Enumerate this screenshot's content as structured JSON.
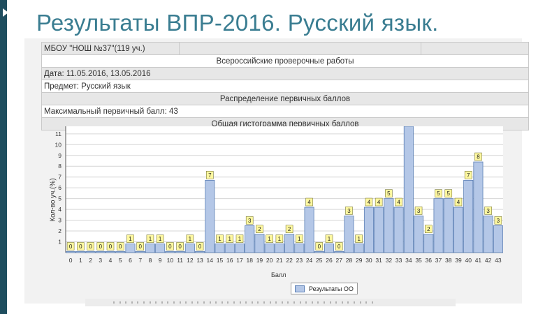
{
  "slide": {
    "title": "Результаты ВПР-2016. Русский язык."
  },
  "info": {
    "school": "МБОУ \"НОШ №37\"(119 уч.)",
    "project": "Всероссийские проверочные работы",
    "date": "Дата: 11.05.2016, 13.05.2016",
    "subject": "Предмет: Русский язык",
    "section": "Распределение первичных баллов",
    "max_score": "Максимальный первичный балл: 43",
    "chart_heading": "Общая гистограмма первичных баллов"
  },
  "colors": {
    "bar_fill": "#b4c7e7",
    "bar_stroke": "#5b7fb5",
    "label_fill": "#fff8a0",
    "title": "#3a7d91",
    "accent": "#1f4e5f"
  },
  "chart_data": {
    "type": "bar",
    "title": "Общая гистограмма первичных баллов",
    "xlabel": "Балл",
    "ylabel": "Кол-во уч.(%)",
    "ylim": [
      0,
      11.7
    ],
    "yticks": [
      1,
      2,
      3,
      4,
      5,
      6,
      7,
      8,
      9,
      10,
      11
    ],
    "grid": true,
    "legend": "bottom-center",
    "categories": [
      "0",
      "1",
      "2",
      "3",
      "4",
      "5",
      "6",
      "7",
      "8",
      "9",
      "10",
      "11",
      "12",
      "13",
      "14",
      "15",
      "16",
      "17",
      "18",
      "19",
      "20",
      "21",
      "22",
      "23",
      "24",
      "25",
      "26",
      "27",
      "28",
      "29",
      "30",
      "31",
      "32",
      "33",
      "34",
      "35",
      "36",
      "37",
      "38",
      "39",
      "40",
      "41",
      "42",
      "43"
    ],
    "series": [
      {
        "name": "Результаты ОО",
        "values": [
          0.1,
          0.1,
          0.1,
          0.1,
          0.1,
          0.1,
          0.8,
          0.1,
          0.8,
          0.8,
          0.1,
          0.1,
          0.8,
          0.1,
          6.7,
          0.8,
          0.8,
          0.8,
          2.5,
          1.7,
          0.8,
          0.8,
          1.7,
          0.8,
          4.2,
          0.1,
          0.8,
          0.1,
          3.4,
          0.8,
          4.2,
          4.2,
          5.0,
          4.2,
          11.7,
          3.4,
          1.7,
          5.0,
          5.0,
          4.2,
          6.7,
          8.4,
          3.4,
          2.5
        ],
        "labels": [
          "0",
          "0",
          "0",
          "0",
          "0",
          "0",
          "1",
          "0",
          "1",
          "1",
          "0",
          "0",
          "1",
          "0",
          "7",
          "1",
          "1",
          "1",
          "3",
          "2",
          "1",
          "1",
          "2",
          "1",
          "4",
          "0",
          "1",
          "0",
          "3",
          "1",
          "4",
          "4",
          "5",
          "4",
          "",
          "3",
          "2",
          "5",
          "5",
          "4",
          "7",
          "8",
          "3",
          "3"
        ]
      }
    ]
  }
}
